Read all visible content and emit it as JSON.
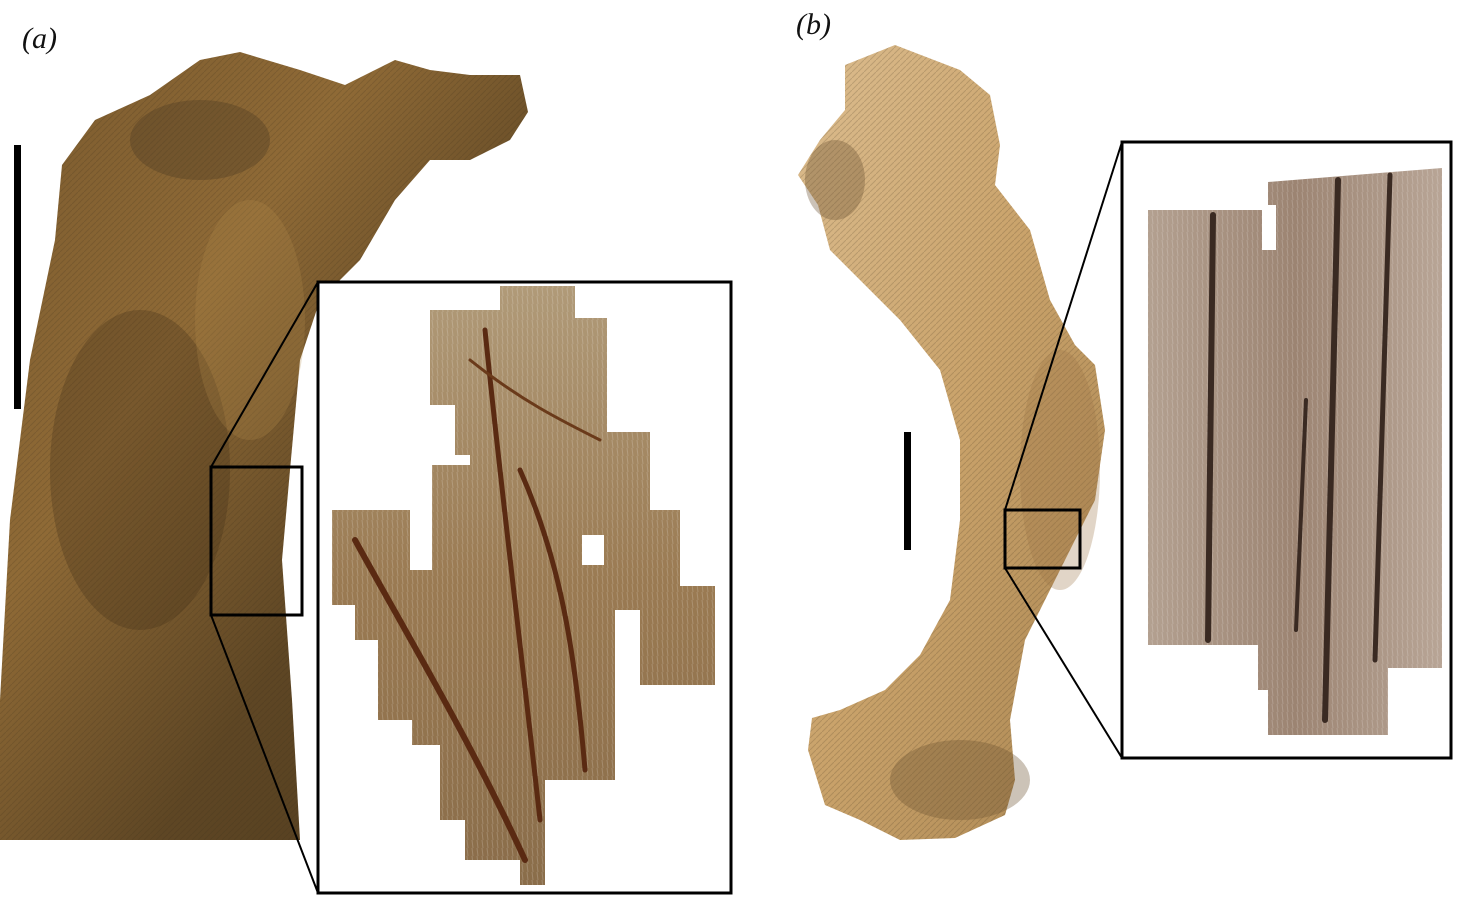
{
  "panels": [
    {
      "label": "(a)"
    },
    {
      "label": "(b)"
    }
  ],
  "colors": {
    "bone_dark": "#5a4220",
    "bone_mid": "#8a6a3a",
    "bone_light": "#c9a574",
    "bone_pale": "#d9b98a",
    "inset_a": "#a58860",
    "inset_b": "#9c8572",
    "stroke": "#000000",
    "background": "#ffffff"
  }
}
